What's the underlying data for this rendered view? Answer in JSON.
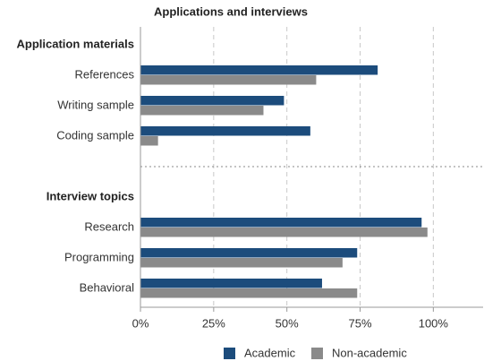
{
  "chart_data": {
    "type": "grouped-barh",
    "title": "Applications and interviews",
    "groups": [
      {
        "label": "Application materials",
        "categories": [
          "References",
          "Writing sample",
          "Coding sample"
        ]
      },
      {
        "label": "Interview topics",
        "categories": [
          "Research",
          "Programming",
          "Behavioral"
        ]
      }
    ],
    "series": [
      {
        "name": "Academic",
        "color": "#1c4c7c",
        "values": [
          81,
          49,
          58,
          96,
          74,
          62
        ]
      },
      {
        "name": "Non-academic",
        "color": "#8a8a8a",
        "values": [
          60,
          42,
          6,
          98,
          69,
          74
        ]
      }
    ],
    "xlim": [
      0,
      117
    ],
    "xticks": [
      {
        "value": 0,
        "label": "0%"
      },
      {
        "value": 25,
        "label": "25%"
      },
      {
        "value": 50,
        "label": "50%"
      },
      {
        "value": 75,
        "label": "75%"
      },
      {
        "value": 100,
        "label": "100%"
      }
    ],
    "grid": true,
    "legend": "bottom"
  }
}
